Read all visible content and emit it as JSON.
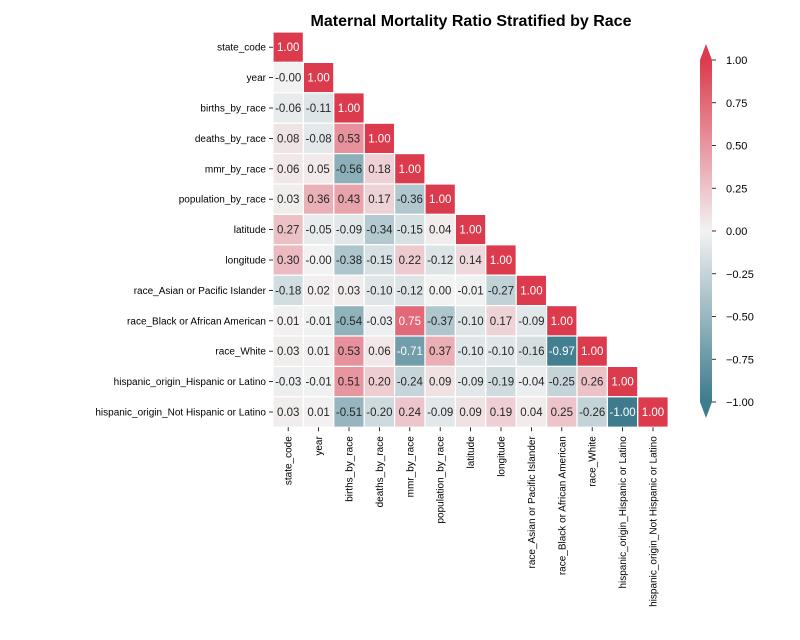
{
  "chart_data": {
    "type": "heatmap",
    "title": "Maternal Mortality Ratio Stratified by Race",
    "mask": "upper-triangle",
    "colormap": {
      "name": "diverging",
      "low_color": "#3d7b8d",
      "mid_color": "#f2f2f2",
      "high_color": "#dc3b4e"
    },
    "vmin": -1.0,
    "vmax": 1.0,
    "colorbar": {
      "ticks": [
        1.0,
        0.75,
        0.5,
        0.25,
        0.0,
        -0.25,
        -0.5,
        -0.75,
        -1.0
      ],
      "tick_labels": [
        "1.00",
        "0.75",
        "0.50",
        "0.25",
        "0.00",
        "−0.25",
        "−0.50",
        "−0.75",
        "−1.00"
      ],
      "extend": "both"
    },
    "labels": [
      "state_code",
      "year",
      "births_by_race",
      "deaths_by_race",
      "mmr_by_race",
      "population_by_race",
      "latitude",
      "longitude",
      "race_Asian or Pacific Islander",
      "race_Black or African American",
      "race_White",
      "hispanic_origin_Hispanic or Latino",
      "hispanic_origin_Not Hispanic or Latino"
    ],
    "values": [
      [
        1.0
      ],
      [
        -0.0,
        1.0
      ],
      [
        -0.06,
        -0.11,
        1.0
      ],
      [
        0.08,
        -0.08,
        0.53,
        1.0
      ],
      [
        0.06,
        0.05,
        -0.56,
        0.18,
        1.0
      ],
      [
        0.03,
        0.36,
        0.43,
        0.17,
        -0.36,
        1.0
      ],
      [
        0.27,
        -0.05,
        -0.09,
        -0.34,
        -0.15,
        0.04,
        1.0
      ],
      [
        0.3,
        -0.0,
        -0.38,
        -0.15,
        0.22,
        -0.12,
        0.14,
        1.0
      ],
      [
        -0.18,
        0.02,
        0.03,
        -0.1,
        -0.12,
        0.0,
        -0.01,
        -0.27,
        1.0
      ],
      [
        0.01,
        -0.01,
        -0.54,
        -0.03,
        0.75,
        -0.37,
        -0.1,
        0.17,
        -0.09,
        1.0
      ],
      [
        0.03,
        0.01,
        0.53,
        0.06,
        -0.71,
        0.37,
        -0.1,
        -0.1,
        -0.16,
        -0.97,
        1.0
      ],
      [
        -0.03,
        -0.01,
        0.51,
        0.2,
        -0.24,
        0.09,
        -0.09,
        -0.19,
        -0.04,
        -0.25,
        0.26,
        1.0
      ],
      [
        0.03,
        0.01,
        -0.51,
        -0.2,
        0.24,
        -0.09,
        0.09,
        0.19,
        0.04,
        0.25,
        -0.26,
        -1.0,
        1.0
      ]
    ],
    "cell_labels": [
      [
        "1.00"
      ],
      [
        "-0.00",
        "1.00"
      ],
      [
        "-0.06",
        "-0.11",
        "1.00"
      ],
      [
        "0.08",
        "-0.08",
        "0.53",
        "1.00"
      ],
      [
        "0.06",
        "0.05",
        "-0.56",
        "0.18",
        "1.00"
      ],
      [
        "0.03",
        "0.36",
        "0.43",
        "0.17",
        "-0.36",
        "1.00"
      ],
      [
        "0.27",
        "-0.05",
        "-0.09",
        "-0.34",
        "-0.15",
        "0.04",
        "1.00"
      ],
      [
        "0.30",
        "-0.00",
        "-0.38",
        "-0.15",
        "0.22",
        "-0.12",
        "0.14",
        "1.00"
      ],
      [
        "-0.18",
        "0.02",
        "0.03",
        "-0.10",
        "-0.12",
        "0.00",
        "-0.01",
        "-0.27",
        "1.00"
      ],
      [
        "0.01",
        "-0.01",
        "-0.54",
        "-0.03",
        "0.75",
        "-0.37",
        "-0.10",
        "0.17",
        "-0.09",
        "1.00"
      ],
      [
        "0.03",
        "0.01",
        "0.53",
        "0.06",
        "-0.71",
        "0.37",
        "-0.10",
        "-0.10",
        "-0.16",
        "-0.97",
        "1.00"
      ],
      [
        "-0.03",
        "-0.01",
        "0.51",
        "0.20",
        "-0.24",
        "0.09",
        "-0.09",
        "-0.19",
        "-0.04",
        "-0.25",
        "0.26",
        "1.00"
      ],
      [
        "0.03",
        "0.01",
        "-0.51",
        "-0.20",
        "0.24",
        "-0.09",
        "0.09",
        "0.19",
        "0.04",
        "0.25",
        "-0.26",
        "-1.00",
        "1.00"
      ]
    ]
  }
}
